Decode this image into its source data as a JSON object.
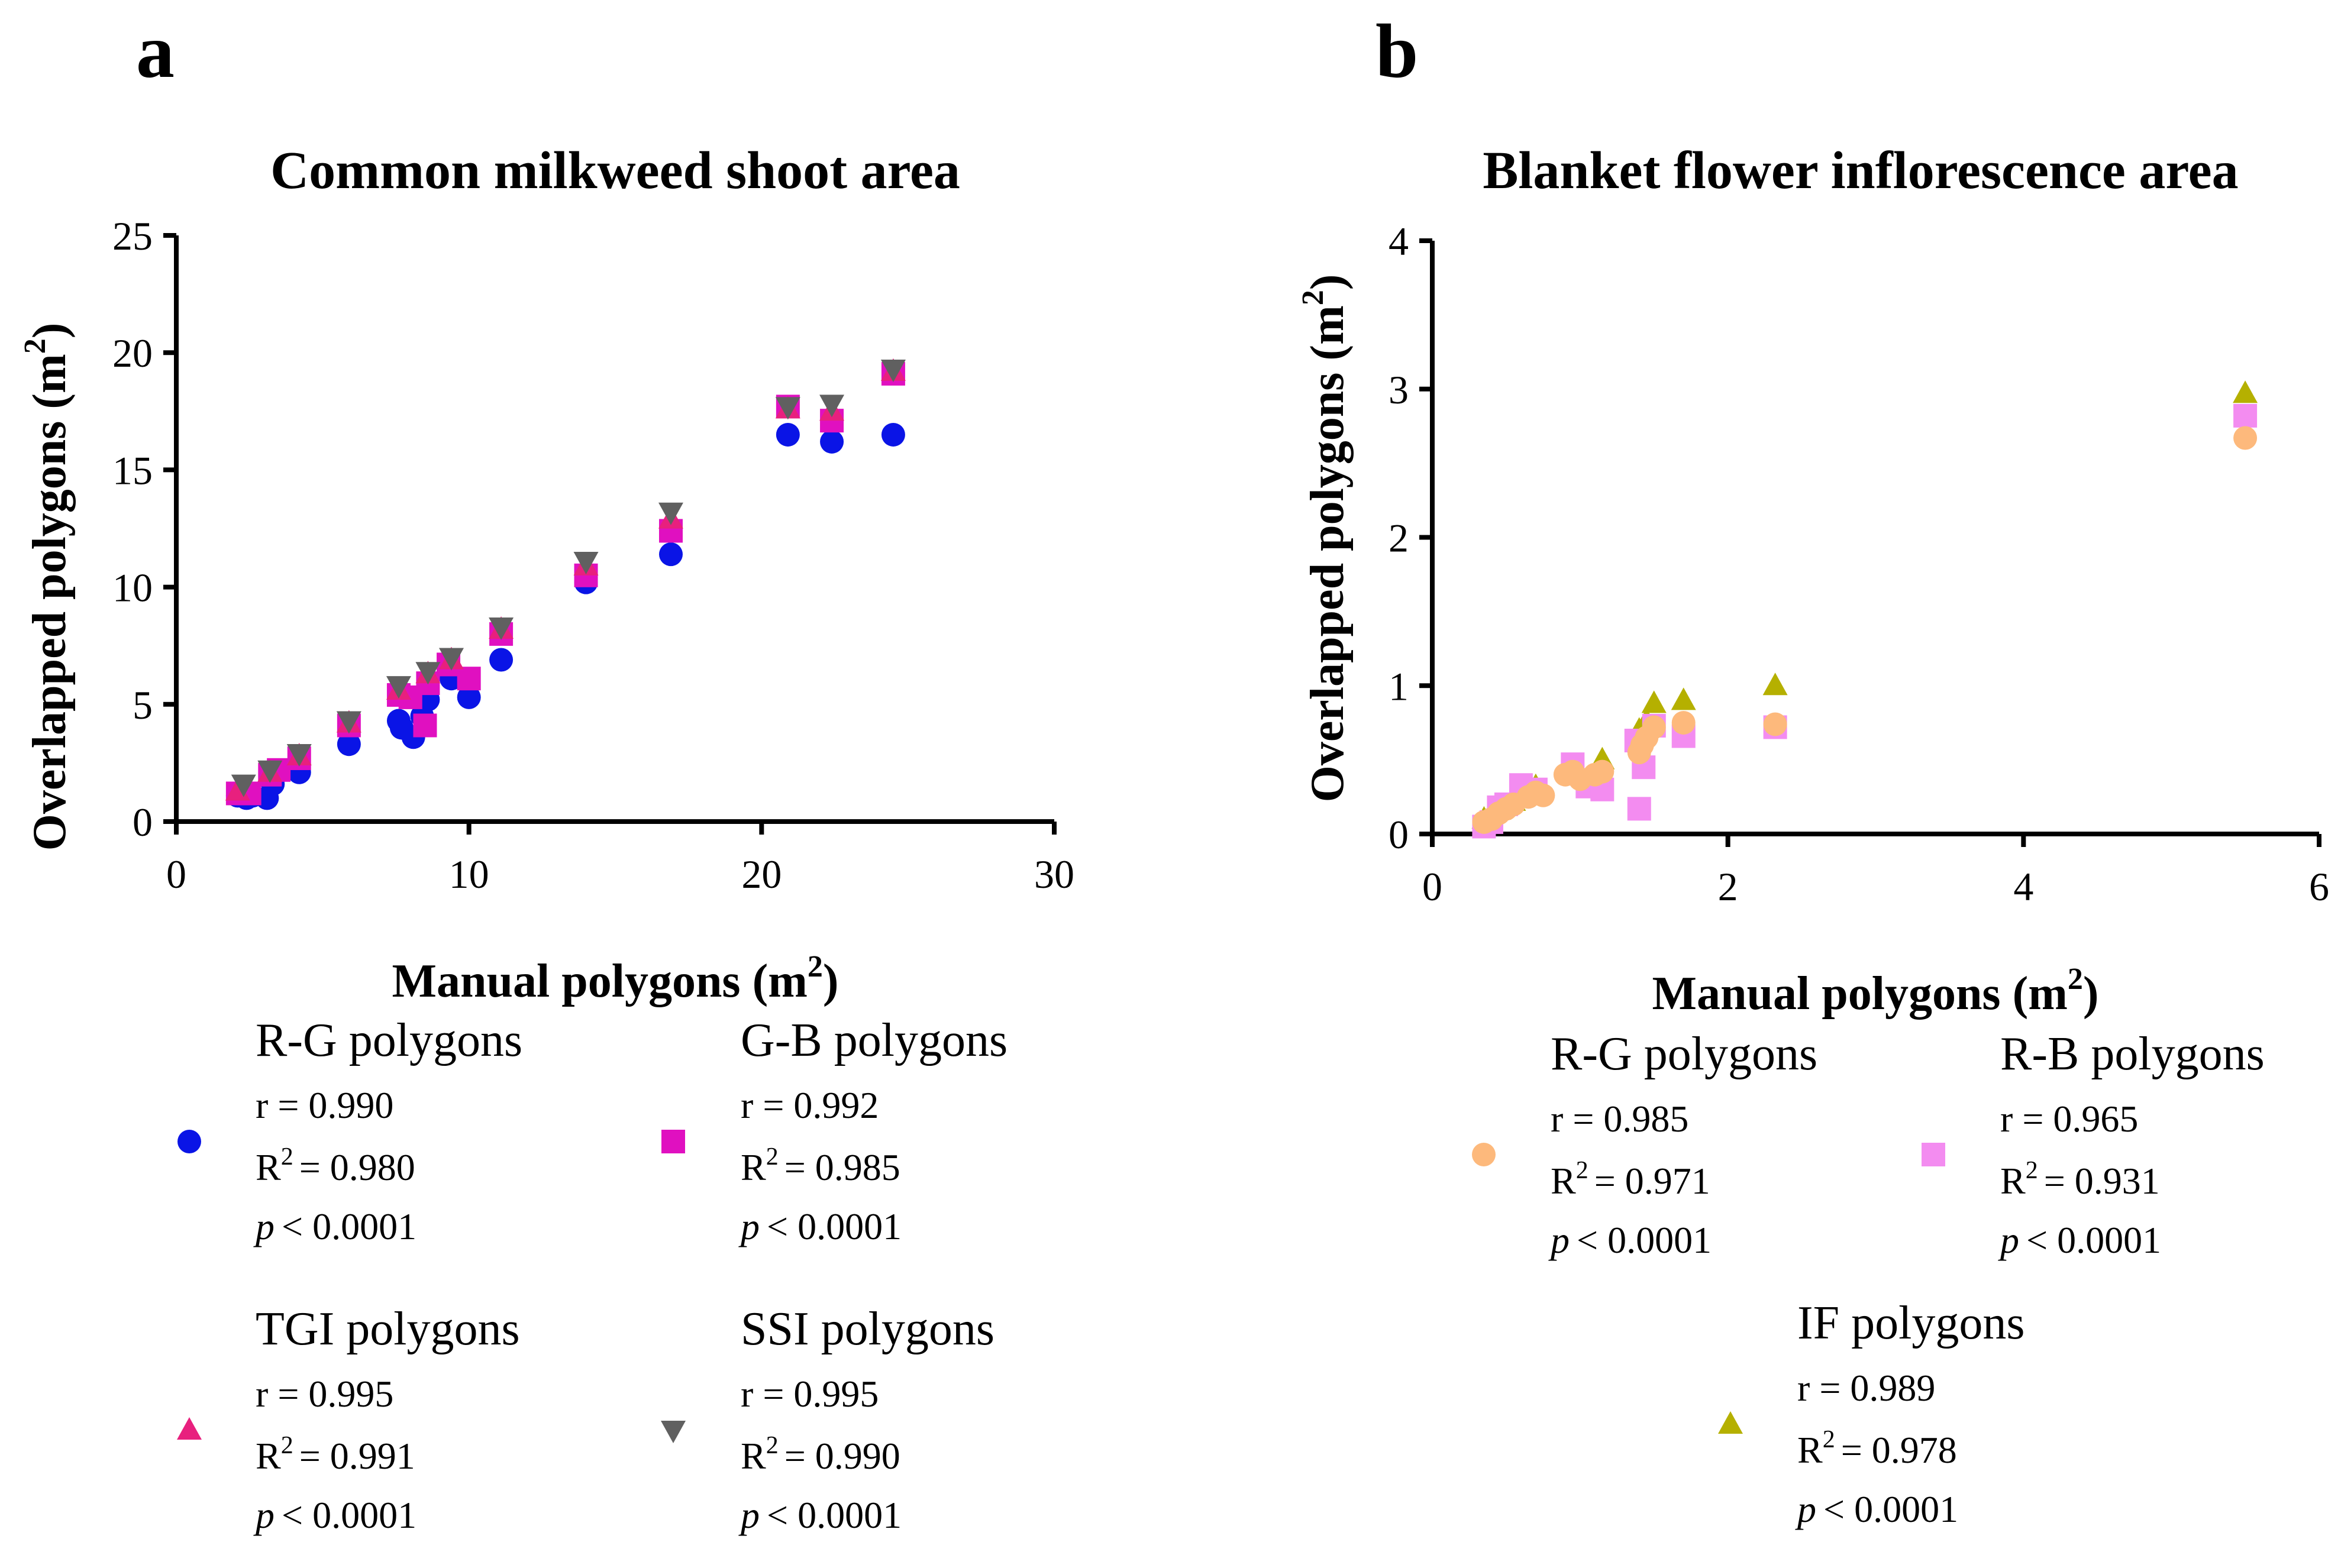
{
  "chart_data": [
    {
      "panel": "a",
      "type": "scatter",
      "title": "Common milkweed shoot area",
      "xlabel": "Manual polygons (m²)",
      "xlabel_main": "Manual polygons (m",
      "xlabel_sup": "2",
      "xlabel_end": ")",
      "ylabel": "Overlapped polygons (m²)",
      "ylabel_main": "Overlapped polygons (m",
      "ylabel_sup": "2",
      "ylabel_end": ")",
      "xlim": [
        0,
        30
      ],
      "ylim": [
        0,
        25
      ],
      "xticks": [
        "0",
        "10",
        "20",
        "30"
      ],
      "yticks": [
        "0",
        "5",
        "10",
        "15",
        "20",
        "25"
      ],
      "series": [
        {
          "name": "R-G polygons",
          "marker": "circle",
          "color": "#0a14e6",
          "stats": {
            "r": "r  = 0.990",
            "r2": "= 0.980",
            "p": "< 0.0001"
          },
          "points": [
            [
              2.1,
              1.1
            ],
            [
              2.4,
              1.0
            ],
            [
              2.6,
              1.1
            ],
            [
              3.1,
              1.0
            ],
            [
              3.3,
              1.6
            ],
            [
              4.2,
              2.1
            ],
            [
              5.9,
              3.3
            ],
            [
              7.6,
              4.3
            ],
            [
              7.7,
              4.0
            ],
            [
              8.1,
              3.6
            ],
            [
              8.4,
              4.5
            ],
            [
              8.6,
              5.2
            ],
            [
              9.4,
              6.1
            ],
            [
              10.0,
              5.3
            ],
            [
              11.1,
              6.9
            ],
            [
              14.0,
              10.2
            ],
            [
              16.9,
              11.4
            ],
            [
              20.9,
              16.5
            ],
            [
              22.4,
              16.2
            ],
            [
              24.5,
              16.5
            ]
          ]
        },
        {
          "name": "G-B polygons",
          "marker": "square",
          "color": "#e010c0",
          "stats": {
            "r": "r = 0.992",
            "r2": "= 0.985",
            "p": "< 0.0001"
          },
          "points": [
            [
              2.1,
              1.2
            ],
            [
              2.5,
              1.2
            ],
            [
              3.2,
              2.0
            ],
            [
              3.5,
              2.2
            ],
            [
              4.2,
              2.7
            ],
            [
              5.9,
              4.1
            ],
            [
              7.6,
              5.4
            ],
            [
              8.0,
              5.3
            ],
            [
              8.5,
              4.1
            ],
            [
              8.6,
              5.9
            ],
            [
              9.3,
              6.7
            ],
            [
              10.0,
              6.1
            ],
            [
              11.1,
              8.0
            ],
            [
              14.0,
              10.5
            ],
            [
              16.9,
              12.4
            ],
            [
              20.9,
              17.7
            ],
            [
              22.4,
              17.1
            ],
            [
              24.5,
              19.1
            ]
          ]
        },
        {
          "name": "TGI polygons",
          "marker": "triangle-up",
          "color": "#e8207e",
          "stats": {
            "r": "r = 0.995",
            "r2": "= 0.991",
            "p": "< 0.0001"
          },
          "points": [
            [
              2.1,
              1.3
            ],
            [
              3.2,
              2.1
            ],
            [
              4.2,
              2.8
            ],
            [
              5.9,
              4.2
            ],
            [
              7.6,
              5.6
            ],
            [
              8.6,
              6.3
            ],
            [
              9.4,
              6.9
            ],
            [
              11.1,
              8.2
            ],
            [
              14.0,
              10.9
            ],
            [
              16.9,
              12.9
            ],
            [
              20.9,
              17.6
            ],
            [
              22.4,
              17.5
            ],
            [
              24.5,
              19.2
            ]
          ]
        },
        {
          "name": "SSI polygons",
          "marker": "triangle-down",
          "color": "#606060",
          "stats": {
            "r": "r = 0.995",
            "r2": "= 0.990",
            "p": "< 0.0001"
          },
          "points": [
            [
              2.3,
              1.6
            ],
            [
              3.2,
              2.2
            ],
            [
              4.2,
              2.9
            ],
            [
              5.9,
              4.3
            ],
            [
              7.6,
              5.8
            ],
            [
              8.6,
              6.4
            ],
            [
              9.4,
              7.0
            ],
            [
              11.1,
              8.3
            ],
            [
              14.0,
              11.1
            ],
            [
              16.9,
              13.2
            ],
            [
              20.9,
              17.7
            ],
            [
              22.4,
              17.8
            ],
            [
              24.5,
              19.3
            ]
          ]
        }
      ]
    },
    {
      "panel": "b",
      "type": "scatter",
      "title": "Blanket flower inflorescence area",
      "xlabel": "Manual polygons (m²)",
      "xlabel_main": "Manual polygons (m",
      "xlabel_sup": "2",
      "xlabel_end": ")",
      "ylabel": "Overlapped polygons (m²)",
      "ylabel_main": "Overlapped polygons (m",
      "ylabel_sup": "2",
      "ylabel_end": ")",
      "xlim": [
        0,
        6
      ],
      "ylim": [
        0,
        4
      ],
      "xticks": [
        "0",
        "2",
        "4",
        "6"
      ],
      "yticks": [
        "0",
        "1",
        "2",
        "3",
        "4"
      ],
      "series": [
        {
          "name": "R-G polygons",
          "marker": "circle",
          "color": "#fdb97c",
          "stats": {
            "r": "r = 0.985",
            "r2": "= 0.971",
            "p": "< 0.0001"
          },
          "points": [
            [
              0.35,
              0.08
            ],
            [
              0.4,
              0.1
            ],
            [
              0.45,
              0.14
            ],
            [
              0.5,
              0.17
            ],
            [
              0.55,
              0.2
            ],
            [
              0.65,
              0.25
            ],
            [
              0.7,
              0.28
            ],
            [
              0.75,
              0.26
            ],
            [
              0.9,
              0.4
            ],
            [
              0.95,
              0.42
            ],
            [
              1.0,
              0.37
            ],
            [
              1.1,
              0.4
            ],
            [
              1.15,
              0.42
            ],
            [
              1.4,
              0.55
            ],
            [
              1.42,
              0.6
            ],
            [
              1.45,
              0.65
            ],
            [
              1.5,
              0.72
            ],
            [
              1.7,
              0.75
            ],
            [
              2.32,
              0.74
            ],
            [
              5.5,
              2.67
            ]
          ]
        },
        {
          "name": "R-B polygons",
          "marker": "square",
          "color": "#f38cf0",
          "stats": {
            "r": "r = 0.965",
            "r2": "= 0.931",
            "p": "< 0.0001"
          },
          "points": [
            [
              0.35,
              0.05
            ],
            [
              0.4,
              0.08
            ],
            [
              0.45,
              0.18
            ],
            [
              0.5,
              0.2
            ],
            [
              0.6,
              0.33
            ],
            [
              0.7,
              0.3
            ],
            [
              0.95,
              0.47
            ],
            [
              1.05,
              0.32
            ],
            [
              1.15,
              0.3
            ],
            [
              1.38,
              0.63
            ],
            [
              1.4,
              0.17
            ],
            [
              1.43,
              0.45
            ],
            [
              1.5,
              0.73
            ],
            [
              1.7,
              0.66
            ],
            [
              2.32,
              0.72
            ],
            [
              5.5,
              2.82
            ]
          ]
        },
        {
          "name": "IF polygons",
          "marker": "triangle-up",
          "color": "#b5b000",
          "stats": {
            "r": "r = 0.989",
            "r2": "= 0.978",
            "p": "< 0.0001"
          },
          "points": [
            [
              0.35,
              0.1
            ],
            [
              0.45,
              0.16
            ],
            [
              0.55,
              0.22
            ],
            [
              0.7,
              0.32
            ],
            [
              0.95,
              0.45
            ],
            [
              1.15,
              0.5
            ],
            [
              1.4,
              0.7
            ],
            [
              1.45,
              0.76
            ],
            [
              1.5,
              0.88
            ],
            [
              1.7,
              0.9
            ],
            [
              2.32,
              1.0
            ],
            [
              5.5,
              2.97
            ]
          ]
        }
      ]
    }
  ],
  "panel_letters": [
    "a",
    "b"
  ],
  "legend_labels": {
    "r2_prefix": "R",
    "r2_sup": "2",
    "p_prefix": "p"
  }
}
